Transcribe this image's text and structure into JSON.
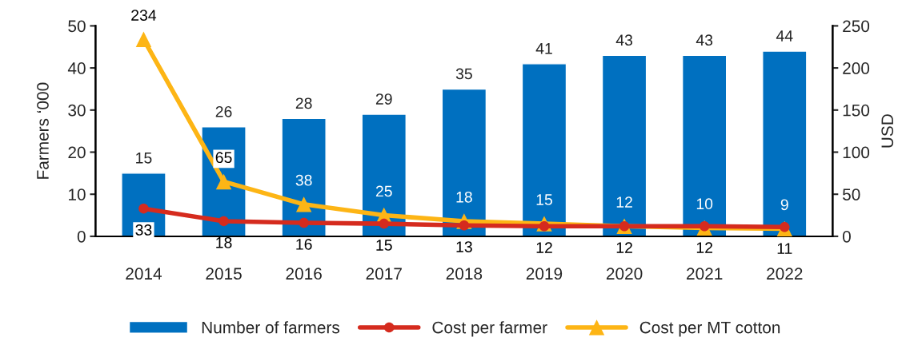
{
  "chart_data": {
    "type": "bar",
    "categories": [
      "2014",
      "2015",
      "2016",
      "2017",
      "2018",
      "2019",
      "2020",
      "2021",
      "2022"
    ],
    "ylabel": "Farmers ‘000",
    "y2label": "USD",
    "ylim": [
      0,
      50
    ],
    "yticks": [
      0,
      10,
      20,
      30,
      40,
      50
    ],
    "y2lim": [
      0,
      250
    ],
    "y2ticks": [
      0,
      50,
      100,
      150,
      200,
      250
    ],
    "series": [
      {
        "name": "Number of farmers",
        "color": "#0070c0",
        "values": [
          15,
          26,
          28,
          29,
          35,
          41,
          43,
          43,
          44
        ]
      },
      {
        "name": "Cost per farmer",
        "type": "line",
        "axis": "y2",
        "color": "#d52b1e",
        "marker": "circle",
        "values": [
          33,
          18,
          16,
          15,
          13,
          12,
          12,
          12,
          11
        ]
      },
      {
        "name": "Cost per MT cotton",
        "type": "line",
        "axis": "y2",
        "color": "#fdb515",
        "marker": "triangle",
        "values": [
          234,
          65,
          38,
          25,
          18,
          15,
          12,
          10,
          9
        ]
      }
    ],
    "data_labels": true,
    "legend": "bottom",
    "grid": false
  }
}
